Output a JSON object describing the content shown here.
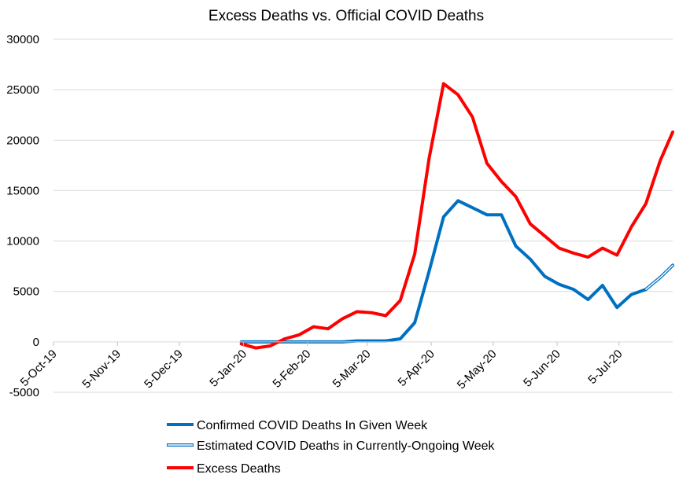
{
  "chart_data": {
    "type": "line",
    "title": "Excess Deaths vs. Official COVID Deaths",
    "xlabel": "",
    "ylabel": "",
    "ylim": [
      -5000,
      30000
    ],
    "yticks": [
      -5000,
      0,
      5000,
      10000,
      15000,
      20000,
      25000,
      30000
    ],
    "ytick_labels": [
      "-5000",
      "0",
      "5000",
      "10000",
      "15000",
      "20000",
      "25000",
      "30000"
    ],
    "x_range": [
      "2019-10-05",
      "2020-07-31"
    ],
    "xticks": [
      "2019-10-05",
      "2019-11-05",
      "2019-12-05",
      "2020-01-05",
      "2020-02-05",
      "2020-03-05",
      "2020-04-05",
      "2020-05-05",
      "2020-06-05",
      "2020-07-05"
    ],
    "xtick_labels": [
      "5-Oct-19",
      "5-Nov-19",
      "5-Dec-19",
      "5-Jan-20",
      "5-Feb-20",
      "5-Mar-20",
      "5-Apr-20",
      "5-May-20",
      "5-Jun-20",
      "5-Jul-20"
    ],
    "grid": "horizontal",
    "legend_position": "bottom",
    "colors": {
      "confirmed": "#0070C0",
      "estimated": "#0070C0",
      "excess": "#FF0000"
    },
    "series": [
      {
        "name": "Confirmed COVID Deaths In Given Week",
        "key": "confirmed",
        "x": [
          "2020-01-04",
          "2020-01-11",
          "2020-01-18",
          "2020-01-25",
          "2020-02-01",
          "2020-02-08",
          "2020-02-15",
          "2020-02-22",
          "2020-02-29",
          "2020-03-07",
          "2020-03-14",
          "2020-03-21",
          "2020-03-28",
          "2020-04-04",
          "2020-04-11",
          "2020-04-18",
          "2020-04-25",
          "2020-05-02",
          "2020-05-09",
          "2020-05-16",
          "2020-05-23",
          "2020-05-30",
          "2020-06-06",
          "2020-06-13",
          "2020-06-20",
          "2020-06-27",
          "2020-07-04",
          "2020-07-11",
          "2020-07-18"
        ],
        "values": [
          0,
          0,
          0,
          0,
          0,
          0,
          0,
          0,
          100,
          100,
          100,
          300,
          1900,
          7000,
          12400,
          14000,
          13300,
          12600,
          12600,
          9500,
          8200,
          6500,
          5700,
          5200,
          4200,
          5600,
          3400,
          4700,
          5200
        ]
      },
      {
        "name": "Estimated COVID Deaths in Currently-Ongoing Week",
        "key": "estimated",
        "x": [
          "2020-07-18",
          "2020-07-25",
          "2020-07-31"
        ],
        "values": [
          5200,
          6400,
          7600
        ]
      },
      {
        "name": "Excess Deaths",
        "key": "excess",
        "x": [
          "2020-01-04",
          "2020-01-11",
          "2020-01-18",
          "2020-01-25",
          "2020-02-01",
          "2020-02-08",
          "2020-02-15",
          "2020-02-22",
          "2020-02-29",
          "2020-03-07",
          "2020-03-14",
          "2020-03-21",
          "2020-03-28",
          "2020-04-04",
          "2020-04-11",
          "2020-04-18",
          "2020-04-25",
          "2020-05-02",
          "2020-05-09",
          "2020-05-16",
          "2020-05-23",
          "2020-05-30",
          "2020-06-06",
          "2020-06-13",
          "2020-06-20",
          "2020-06-27",
          "2020-07-04",
          "2020-07-11",
          "2020-07-18",
          "2020-07-25",
          "2020-07-31"
        ],
        "values": [
          -200,
          -600,
          -400,
          300,
          700,
          1500,
          1300,
          2300,
          3000,
          2900,
          2600,
          4100,
          8700,
          18200,
          25600,
          24500,
          22300,
          17700,
          15900,
          14400,
          11700,
          10500,
          9300,
          8800,
          8400,
          9300,
          8600,
          11400,
          13700,
          18000,
          20800
        ]
      }
    ]
  }
}
